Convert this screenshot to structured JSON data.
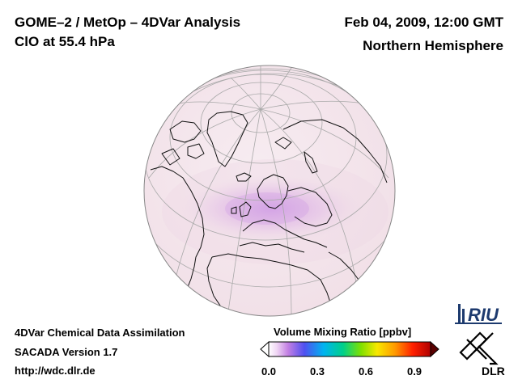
{
  "header": {
    "title_line1": "GOME–2 / MetOp – 4DVar Analysis",
    "title_line2": "ClO at 55.4 hPa",
    "date": "Feb 04, 2009, 12:00 GMT",
    "region": "Northern Hemisphere"
  },
  "footer": {
    "line1": "4DVar Chemical Data Assimilation",
    "line2": "SACADA Version 1.7",
    "line3": "http://wdc.dlr.de"
  },
  "colorbar": {
    "title": "Volume Mixing Ratio [ppbv]",
    "ticks": [
      "0.0",
      "0.3",
      "0.6",
      "0.9"
    ],
    "range": [
      0.0,
      1.0
    ]
  },
  "logos": {
    "riu": "RIU",
    "dlr": "DLR"
  },
  "colors": {
    "globe_background": "#f6eaf0",
    "enhancement": "#c889e6",
    "grid": "#a8a8a8",
    "coast": "#111111"
  }
}
